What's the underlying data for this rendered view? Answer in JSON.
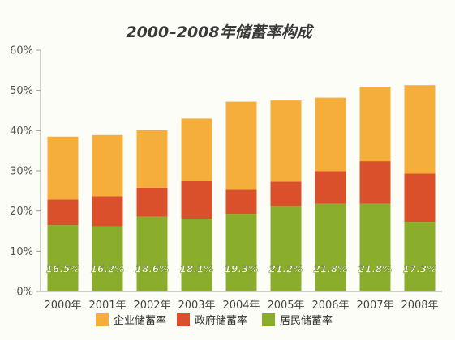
{
  "chart_data": {
    "type": "bar",
    "stacked": true,
    "title": "2000–2008年储蓄率构成",
    "categories": [
      "2000年",
      "2001年",
      "2002年",
      "2003年",
      "2004年",
      "2005年",
      "2006年",
      "2007年",
      "2008年"
    ],
    "ylim": [
      0,
      60
    ],
    "yticks": [
      "0%",
      "10%",
      "20%",
      "30%",
      "40%",
      "50%",
      "60%"
    ],
    "grid": false,
    "legend_position": "bottom",
    "series": [
      {
        "name": "居民储蓄率",
        "color": "#8aae2b",
        "values": [
          16.5,
          16.2,
          18.6,
          18.1,
          19.3,
          21.2,
          21.8,
          21.8,
          17.3
        ],
        "labels": [
          "16.5%",
          "16.2%",
          "18.6%",
          "18.1%",
          "19.3%",
          "21.2%",
          "21.8%",
          "21.8%",
          "17.3%"
        ]
      },
      {
        "name": "政府储蓄率",
        "color": "#d9502a",
        "values": [
          6.4,
          7.5,
          7.2,
          9.3,
          6.0,
          6.1,
          8.1,
          10.6,
          12.0
        ]
      },
      {
        "name": "企业储蓄率",
        "color": "#f5ae3c",
        "values": [
          15.6,
          15.2,
          14.3,
          15.6,
          21.9,
          20.2,
          18.3,
          18.5,
          22.0
        ]
      }
    ],
    "legend_order": [
      "企业储蓄率",
      "政府储蓄率",
      "居民储蓄率"
    ]
  }
}
